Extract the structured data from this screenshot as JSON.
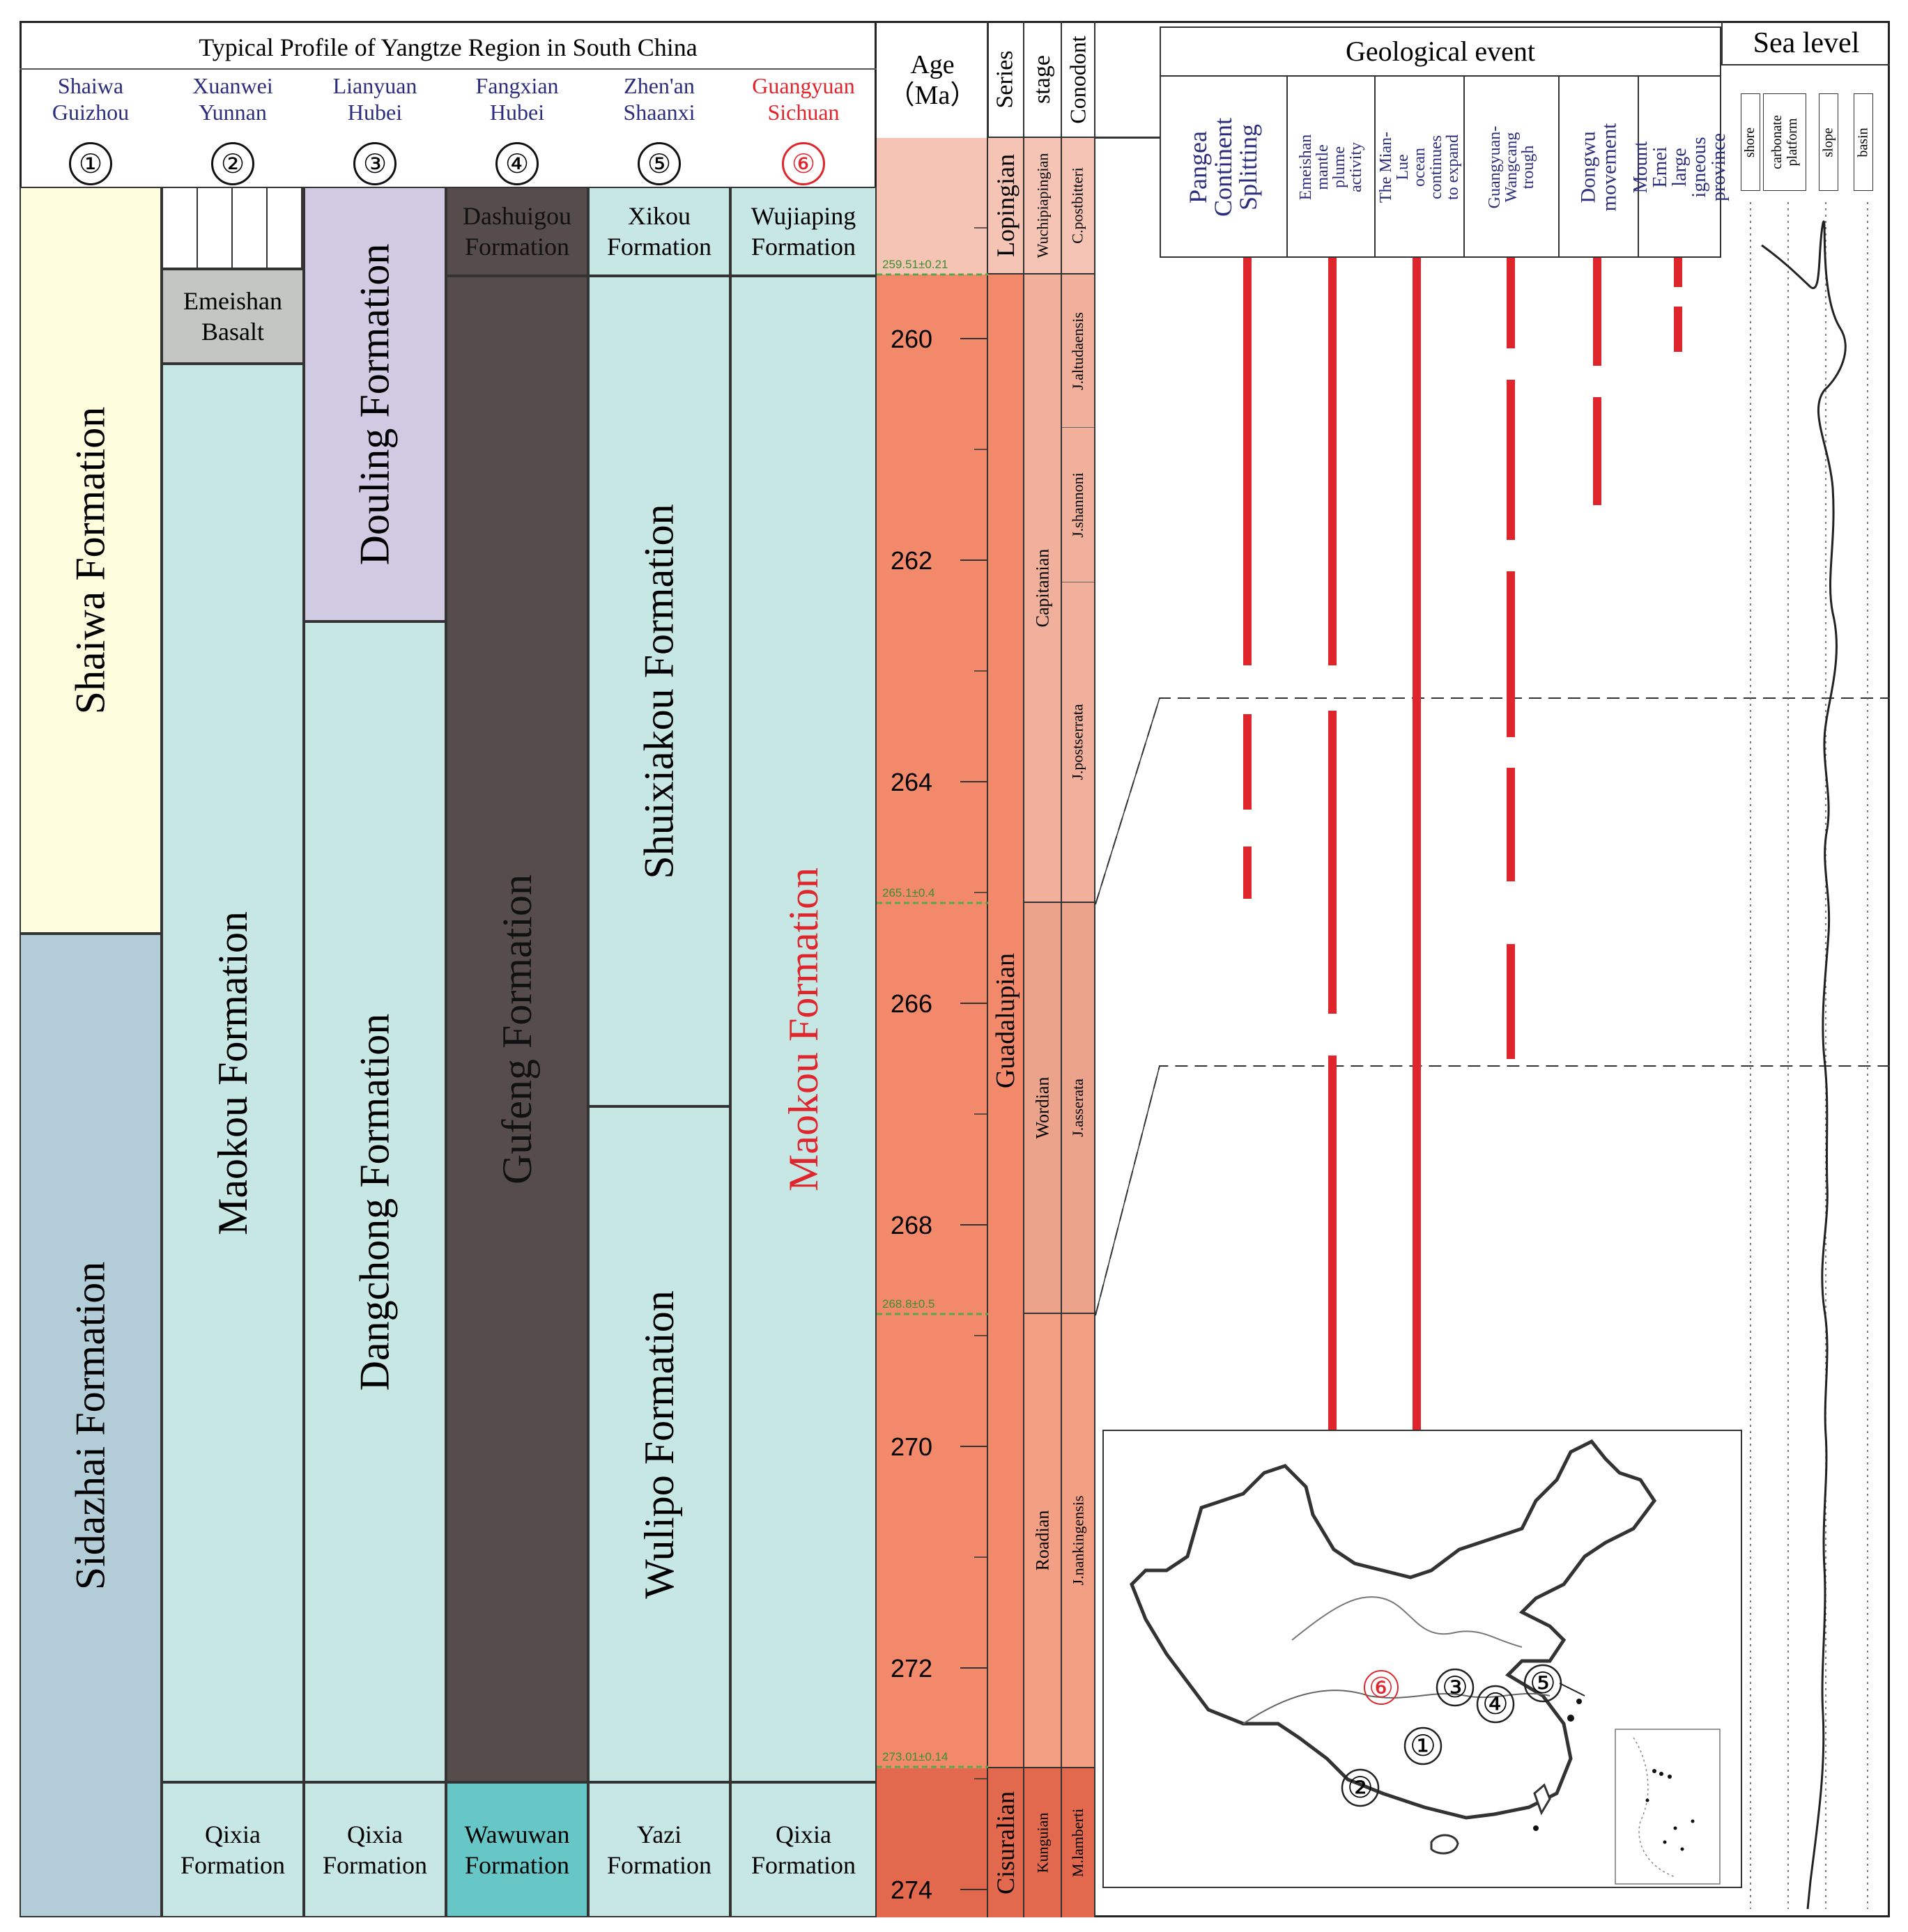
{
  "profile": {
    "title": "Typical Profile of Yangtze Region in South China",
    "columns": [
      {
        "loc": "Shaiwa\nGuizhou",
        "num": "①",
        "highlight": false
      },
      {
        "loc": "Xuanwei\nYunnan",
        "num": "②",
        "highlight": false
      },
      {
        "loc": "Lianyuan\nHubei",
        "num": "③",
        "highlight": false
      },
      {
        "loc": "Fangxian\nHubei",
        "num": "④",
        "highlight": false
      },
      {
        "loc": "Zhen'an\nShaanxi",
        "num": "⑤",
        "highlight": false
      },
      {
        "loc": "Guangyuan\nSichuan",
        "num": "⑥",
        "highlight": true
      }
    ],
    "formations": {
      "shaiwa": "Shaiwa Formation",
      "sidazhai": "Sidazhai Formation",
      "emeishan_basalt": "Emeishan\nBasalt",
      "maokou_2": "Maokou Formation",
      "qixia_2": "Qixia\nFormation",
      "douling": "Douling Formation",
      "dangchong": "Dangchong Formation",
      "qixia_3": "Qixia\nFormation",
      "dashuigou": "Dashuigou\nFormation",
      "gufeng": "Gufeng Formation",
      "wawuwan": "Wawuwan\nFormation",
      "xikou": "Xikou\nFormation",
      "shuixiakou": "Shuixiakou Formation",
      "wulipo": "Wulipo Formation",
      "yazi": "Yazi\nFormation",
      "wujiaping": "Wujiaping\nFormation",
      "maokou_6": "Maokou Formation",
      "qixia_6": "Qixia\nFormation"
    }
  },
  "age": {
    "header": "Age\n（Ma）",
    "ticks": [
      "260",
      "262",
      "264",
      "266",
      "268",
      "270",
      "272",
      "274"
    ],
    "dated_boundaries": [
      "259.51±0.21",
      "265.1±0.4",
      "268.8±0.5",
      "273.01±0.14"
    ]
  },
  "series": {
    "header": "Series",
    "lopingian": "Lopingian",
    "guadalupian": "Guadalupian",
    "cisuralian": "Cisuralian"
  },
  "stage": {
    "header": "stage",
    "wuchiapingian": "Wuchipiapingian",
    "capitanian": "Capitanian",
    "wordian": "Wordian",
    "roadian": "Roadian",
    "kungurian": "Kunguian"
  },
  "conodont": {
    "header": "Conodont",
    "zones": [
      "C.postbitteri",
      "J.altudaensis",
      "J.shannoni",
      "J.postserrata",
      "J.asserata",
      "J.nankingensis",
      "M.lamberti"
    ]
  },
  "events": {
    "header": "Geological event",
    "items": [
      "Pangea\nContinent\nSplitting",
      "Emeishan mantle\nplume activity",
      "The Mian-Lue\nocean continues\nto expand",
      "Guangyuan-\nWangcang trough",
      "Dongwu\nmovement",
      "Mount Emei\nlarge igneous\nprovince"
    ]
  },
  "sea_level": {
    "header": "Sea level",
    "labels": [
      "shore",
      "carbonate\nplatform",
      "slope",
      "basin"
    ]
  },
  "map": {
    "markers": [
      "⑥",
      "③",
      "④",
      "⑤",
      "①",
      "②"
    ]
  },
  "colors": {
    "shaiwa": "#fdfcdc",
    "sidazhai": "#b3cdd8",
    "pale_cyan": "#c7e7e5",
    "basalt": "#c3c6c3",
    "douling": "#d0cbe3",
    "gufeng": "#554c4b",
    "wawuwan": "#67c7c7",
    "event_red": "#e0262d",
    "highlight_red": "#e0262d",
    "loc_blue": "#2b2e7d"
  }
}
